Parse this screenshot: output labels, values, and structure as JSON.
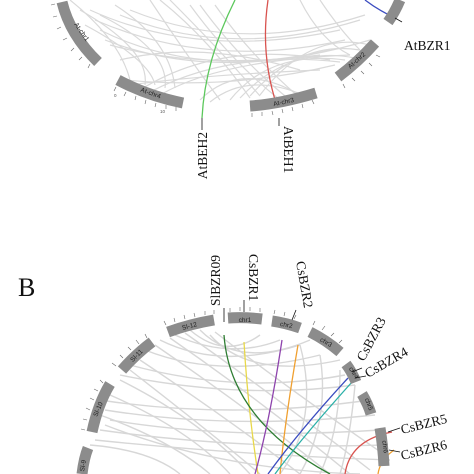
{
  "panel_b_letter": "B",
  "panel_a": {
    "chromosomes": [
      {
        "id": "top-left",
        "label": "At-chr1"
      },
      {
        "id": "chr4",
        "label": "At-chr4"
      },
      {
        "id": "chr3",
        "label": "At-chr3"
      },
      {
        "id": "chr2",
        "label": "At-chr2"
      }
    ],
    "genes": [
      {
        "id": "atbzr1",
        "label": "AtBZR1"
      },
      {
        "id": "atbeh2",
        "label": "AtBEH2"
      },
      {
        "id": "atbeh1",
        "label": "AtBEH1"
      }
    ]
  },
  "panel_b": {
    "chromosomes": [
      {
        "id": "sl9",
        "label": "Sl-9"
      },
      {
        "id": "sl10",
        "label": "Sl-10"
      },
      {
        "id": "sl11",
        "label": "Sl-11"
      },
      {
        "id": "sl12",
        "label": "Sl-12"
      },
      {
        "id": "chr1",
        "label": "chr1"
      },
      {
        "id": "chr2",
        "label": "chr2"
      },
      {
        "id": "chr3",
        "label": "chr3"
      },
      {
        "id": "chr4",
        "label": "chr4"
      },
      {
        "id": "chr5",
        "label": "chr5"
      },
      {
        "id": "chr6",
        "label": "chr6"
      }
    ],
    "genes": [
      {
        "id": "slbzr09",
        "label": "SlBZR09"
      },
      {
        "id": "csbzr1",
        "label": "CsBZR1"
      },
      {
        "id": "csbzr2",
        "label": "CsBZR2"
      },
      {
        "id": "csbzr3",
        "label": "CsBZR3"
      },
      {
        "id": "csbzr4",
        "label": "CsBZR4"
      },
      {
        "id": "csbzr5",
        "label": "CsBZR5"
      },
      {
        "id": "csbzr6",
        "label": "CsBZR6"
      }
    ]
  },
  "link_colors": {
    "grey": "#d3d3d3",
    "green": "#5cc85c",
    "red": "#d9534f",
    "blue": "#3b4cc0",
    "yellow": "#e8d84a",
    "purple": "#8e44ad",
    "orange": "#f0a030",
    "dark_green": "#2e7d32",
    "teal": "#2ab0a8"
  }
}
